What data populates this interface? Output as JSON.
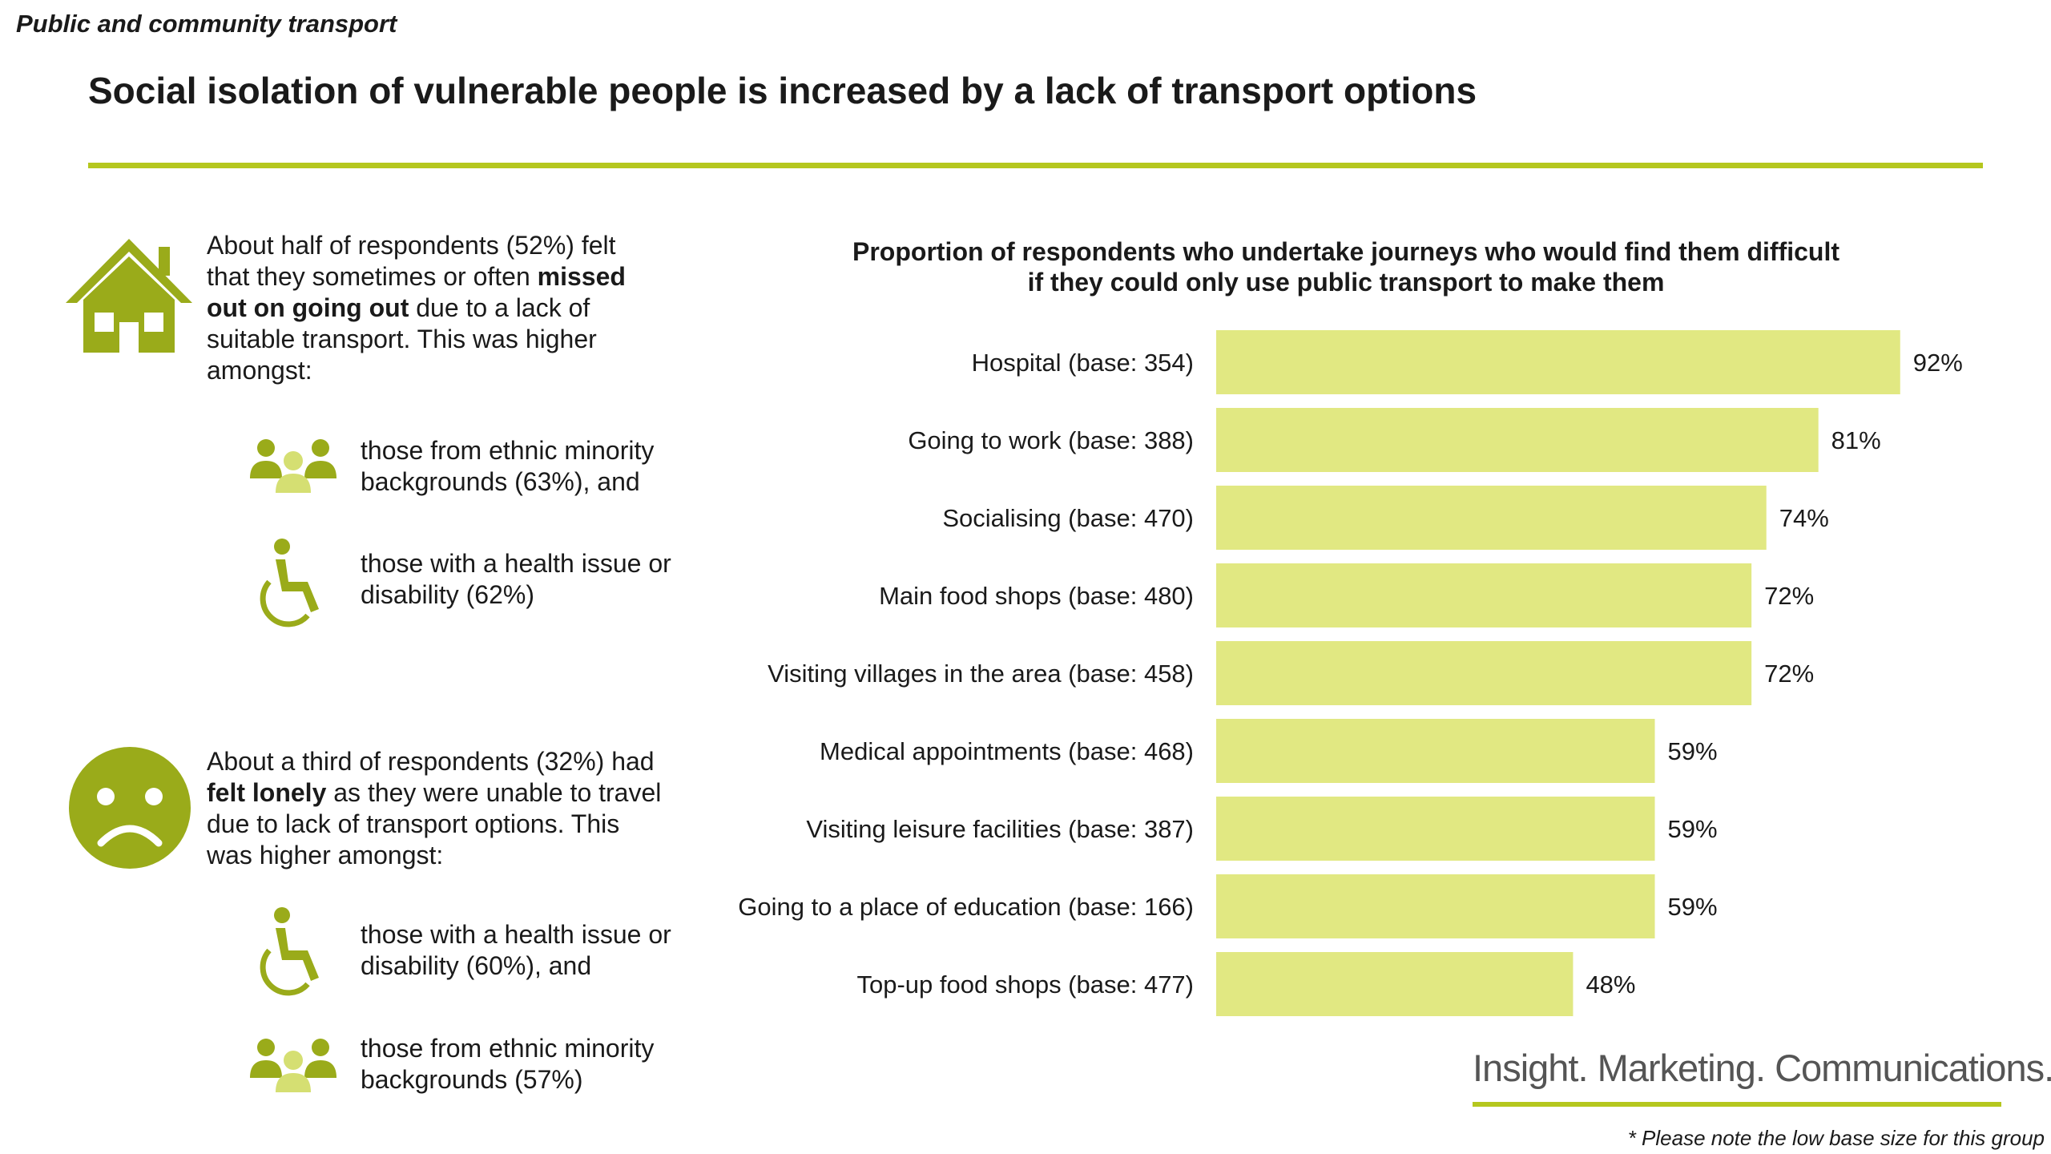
{
  "section_tag": "Public and community transport",
  "title": "Social isolation of vulnerable people is increased by a lack of transport options",
  "block1": {
    "text_a": "About half of respondents (52%) felt that they sometimes or often ",
    "bold": "missed out on going out",
    "text_b": " due to a lack of suitable transport. This was higher amongst:",
    "sub1": "those from ethnic minority backgrounds (63%), and",
    "sub2": "those with a health issue or disability (62%)"
  },
  "block2": {
    "text_a": "About a third of respondents (32%) had ",
    "bold": "felt lonely",
    "text_b": " as they were unable to travel due to lack of transport options. This was higher amongst:",
    "sub1": "those with a health issue or disability (60%), and",
    "sub2": "those from ethnic minority backgrounds (57%)"
  },
  "chart_data": {
    "type": "bar",
    "orientation": "horizontal",
    "title_line1": "Proportion of respondents who undertake journeys who would find them difficult",
    "title_line2": "if they could only use public transport to make them",
    "categories": [
      "Hospital (base: 354)",
      "Going to work (base: 388)",
      "Socialising (base: 470)",
      "Main food shops (base: 480)",
      "Visiting villages in the area (base: 458)",
      "Medical appointments (base: 468)",
      "Visiting leisure facilities (base: 387)",
      "Going to a place of education (base: 166)",
      "Top-up food shops (base: 477)"
    ],
    "values": [
      92,
      81,
      74,
      72,
      72,
      59,
      59,
      59,
      48
    ],
    "value_suffix": "%",
    "xlim": [
      0,
      100
    ],
    "bar_color": "#e1e882",
    "grid": false
  },
  "colors": {
    "accent": "#b5c71e",
    "icon": "#9aab1a",
    "icon_light": "#d5df72"
  },
  "logo": "Insight. Marketing. Communications.",
  "footnote": "* Please note the low base size for this group"
}
